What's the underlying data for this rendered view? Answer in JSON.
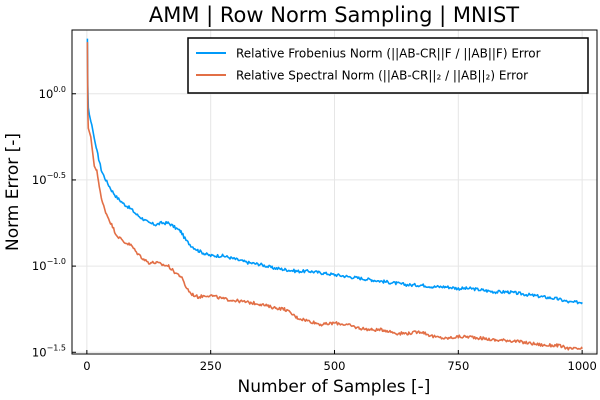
{
  "chart_data": {
    "type": "line",
    "title": "AMM | Row Norm Sampling | MNIST",
    "xlabel": "Number of Samples [-]",
    "ylabel": "Norm Error [-]",
    "x_scale": "linear",
    "y_scale": "log10",
    "xlim": [
      -30,
      1030
    ],
    "ylim": [
      -1.51,
      0.37
    ],
    "grid": true,
    "legend_position": "top-right",
    "x_ticks": [
      0,
      250,
      500,
      750,
      1000
    ],
    "x_tick_labels": [
      "0",
      "250",
      "500",
      "750",
      "1000"
    ],
    "y_ticks": [
      0.0,
      -0.5,
      -1.0,
      -1.5
    ],
    "y_tick_base": "10",
    "y_tick_exponents": [
      "0.0",
      "−0.5",
      "−1.0",
      "−1.5"
    ],
    "series": [
      {
        "name": "Relative Frobenius Norm (||AB-CR||F / ||AB||F) Error",
        "color": "#009af9",
        "x": [
          1,
          2,
          3,
          5,
          8,
          10,
          15,
          20,
          25,
          30,
          40,
          50,
          60,
          75,
          90,
          100,
          115,
          125,
          140,
          150,
          165,
          175,
          190,
          200,
          210,
          225,
          240,
          250,
          275,
          300,
          325,
          350,
          375,
          400,
          425,
          450,
          475,
          500,
          525,
          550,
          575,
          600,
          625,
          650,
          675,
          700,
          725,
          750,
          775,
          800,
          825,
          850,
          875,
          900,
          925,
          950,
          975,
          1000
        ],
        "y_log10": [
          0.32,
          0.05,
          -0.08,
          -0.12,
          -0.16,
          -0.18,
          -0.26,
          -0.33,
          -0.39,
          -0.45,
          -0.51,
          -0.56,
          -0.6,
          -0.64,
          -0.67,
          -0.7,
          -0.73,
          -0.75,
          -0.76,
          -0.75,
          -0.75,
          -0.77,
          -0.8,
          -0.85,
          -0.88,
          -0.91,
          -0.93,
          -0.94,
          -0.94,
          -0.96,
          -0.98,
          -0.99,
          -1.01,
          -1.02,
          -1.03,
          -1.03,
          -1.04,
          -1.05,
          -1.06,
          -1.07,
          -1.08,
          -1.09,
          -1.1,
          -1.11,
          -1.11,
          -1.12,
          -1.12,
          -1.13,
          -1.13,
          -1.14,
          -1.15,
          -1.15,
          -1.16,
          -1.17,
          -1.18,
          -1.19,
          -1.21,
          -1.21
        ]
      },
      {
        "name": "Relative Spectral Norm (||AB-CR||₂ / ||AB||₂) Error",
        "color": "#e26f46",
        "x": [
          1,
          2,
          3,
          5,
          8,
          10,
          15,
          20,
          25,
          30,
          40,
          50,
          60,
          75,
          90,
          100,
          115,
          125,
          140,
          150,
          165,
          175,
          190,
          200,
          210,
          225,
          240,
          250,
          275,
          300,
          325,
          350,
          375,
          400,
          425,
          450,
          475,
          500,
          525,
          550,
          575,
          600,
          625,
          650,
          675,
          700,
          725,
          750,
          775,
          800,
          825,
          850,
          875,
          900,
          925,
          950,
          975,
          1000
        ],
        "y_log10": [
          0.3,
          -0.1,
          -0.2,
          -0.22,
          -0.25,
          -0.3,
          -0.42,
          -0.45,
          -0.53,
          -0.62,
          -0.7,
          -0.76,
          -0.82,
          -0.86,
          -0.88,
          -0.92,
          -0.96,
          -0.98,
          -0.98,
          -0.99,
          -1.0,
          -1.03,
          -1.06,
          -1.12,
          -1.16,
          -1.18,
          -1.17,
          -1.17,
          -1.19,
          -1.2,
          -1.21,
          -1.22,
          -1.24,
          -1.25,
          -1.3,
          -1.32,
          -1.34,
          -1.33,
          -1.34,
          -1.36,
          -1.37,
          -1.37,
          -1.39,
          -1.39,
          -1.38,
          -1.41,
          -1.42,
          -1.41,
          -1.41,
          -1.42,
          -1.43,
          -1.43,
          -1.44,
          -1.45,
          -1.46,
          -1.46,
          -1.48,
          -1.48
        ]
      }
    ]
  }
}
